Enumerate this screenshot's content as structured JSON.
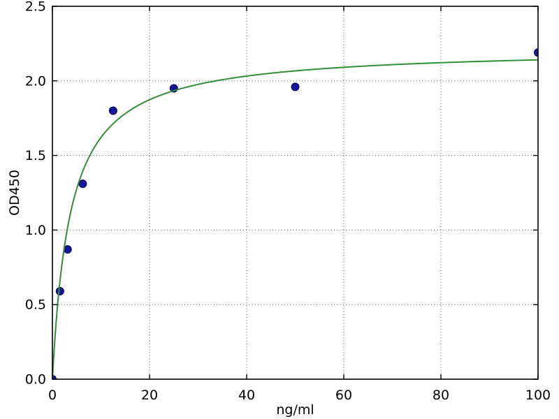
{
  "figure": {
    "background_color": "#ffffff",
    "plot_border_color": "#000000"
  },
  "chart_data": {
    "type": "scatter",
    "title": "",
    "xlabel": "ng/ml",
    "ylabel": "OD450",
    "xlim": [
      0,
      100
    ],
    "ylim": [
      0.0,
      2.5
    ],
    "xticks": {
      "values": [
        0,
        20,
        40,
        60,
        80,
        100
      ],
      "labels": [
        "0",
        "20",
        "40",
        "60",
        "80",
        "100"
      ]
    },
    "yticks": {
      "values": [
        0.0,
        0.5,
        1.0,
        1.5,
        2.0,
        2.5
      ],
      "labels": [
        "0.0",
        "0.5",
        "1.0",
        "1.5",
        "2.0",
        "2.5"
      ]
    },
    "grid": {
      "visible": true,
      "style": "dotted",
      "color": "#4a4a4a"
    },
    "legend_position": "none",
    "series": [
      {
        "name": "standard-points",
        "kind": "scatter",
        "marker": "circle",
        "marker_color": "#15159b",
        "marker_edge_color": "#000050",
        "marker_radius": 5.5,
        "x": [
          0,
          1.56,
          3.125,
          6.25,
          12.5,
          25,
          50,
          100
        ],
        "y": [
          0.0,
          0.59,
          0.87,
          1.31,
          1.8,
          1.95,
          1.96,
          2.19
        ]
      },
      {
        "name": "fit-curve",
        "kind": "line",
        "line_color": "#2f8f37",
        "line_width": 2,
        "model": "saturation_michaelis_menten",
        "vmax": 2.22,
        "km": 3.7,
        "x_range": [
          0,
          100
        ]
      }
    ]
  }
}
